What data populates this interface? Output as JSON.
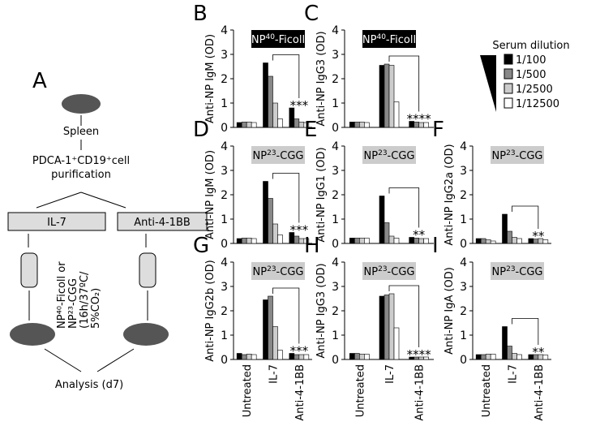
{
  "diagram": {
    "letter": "A",
    "spleen": "Spleen",
    "sort1": "PDCA-1⁺CD19⁺cell",
    "sort2": "purification",
    "left_dish": "IL-7",
    "right_dish": "Anti-4-1BB",
    "stim": [
      "NP⁴⁰-Ficoll or",
      "NP²³-CGG",
      "(16h/37ºC/",
      "5%CO₂)"
    ],
    "analysis": "Analysis (d7)"
  },
  "categories": [
    "Untreated",
    "IL-7",
    "Anti-4-1BB"
  ],
  "legend": {
    "title": "Serum dilution",
    "names": [
      "1/100",
      "1/500",
      "1/2500",
      "1/12500"
    ],
    "colors": [
      "#000000",
      "#888888",
      "#cccccc",
      "#ffffff"
    ]
  },
  "chart_data": [
    {
      "type": "bar",
      "panel": "B",
      "title": [
        "NP",
        "40",
        "-Ficoll"
      ],
      "title_box": "#000000",
      "title_text": "#ffffff",
      "ylabel": "Anti-NP IgM (OD)",
      "ylim": [
        0,
        4
      ],
      "yticks": [
        0,
        1,
        2,
        3,
        4
      ],
      "significance": "***",
      "series": [
        {
          "values": [
            0.2,
            2.65,
            0.8
          ]
        },
        {
          "values": [
            0.22,
            2.1,
            0.35
          ]
        },
        {
          "values": [
            0.22,
            1.0,
            0.22
          ]
        },
        {
          "values": [
            0.2,
            0.35,
            0.2
          ]
        }
      ]
    },
    {
      "type": "bar",
      "panel": "C",
      "title": [
        "NP",
        "40",
        "-Ficoll"
      ],
      "title_box": "#000000",
      "title_text": "#ffffff",
      "ylabel": "Anti-NP IgG3 (OD)",
      "ylim": [
        0,
        4
      ],
      "yticks": [
        0,
        1,
        2,
        3,
        4
      ],
      "significance": "****",
      "series": [
        {
          "values": [
            0.22,
            2.55,
            0.25
          ]
        },
        {
          "values": [
            0.22,
            2.6,
            0.22
          ]
        },
        {
          "values": [
            0.22,
            2.55,
            0.2
          ]
        },
        {
          "values": [
            0.2,
            1.05,
            0.2
          ]
        }
      ]
    },
    {
      "type": "bar",
      "panel": "D",
      "title": [
        "NP",
        "23",
        "-CGG"
      ],
      "title_box": "#cccccc",
      "title_text": "#000000",
      "ylabel": "Anti-NP IgM (OD)",
      "ylim": [
        0,
        4
      ],
      "yticks": [
        0,
        1,
        2,
        3,
        4
      ],
      "significance": "***",
      "series": [
        {
          "values": [
            0.2,
            2.55,
            0.45
          ]
        },
        {
          "values": [
            0.22,
            1.85,
            0.3
          ]
        },
        {
          "values": [
            0.22,
            0.8,
            0.2
          ]
        },
        {
          "values": [
            0.2,
            0.35,
            0.2
          ]
        }
      ]
    },
    {
      "type": "bar",
      "panel": "E",
      "title": [
        "NP",
        "23",
        "-CGG"
      ],
      "title_box": "#cccccc",
      "title_text": "#000000",
      "ylabel": "Anti-NP IgG1 (OD)",
      "ylim": [
        0,
        4
      ],
      "yticks": [
        0,
        1,
        2,
        3,
        4
      ],
      "significance": "**",
      "series": [
        {
          "values": [
            0.22,
            1.95,
            0.25
          ]
        },
        {
          "values": [
            0.22,
            0.85,
            0.22
          ]
        },
        {
          "values": [
            0.22,
            0.3,
            0.2
          ]
        },
        {
          "values": [
            0.22,
            0.22,
            0.2
          ]
        }
      ]
    },
    {
      "type": "bar",
      "panel": "F",
      "title": [
        "NP",
        "23",
        "-CGG"
      ],
      "title_box": "#cccccc",
      "title_text": "#000000",
      "ylabel": "Anti-NP IgG2a (OD)",
      "ylim": [
        0,
        4
      ],
      "yticks": [
        0,
        1,
        2,
        3,
        4
      ],
      "significance": "**",
      "series": [
        {
          "values": [
            0.2,
            1.2,
            0.2
          ]
        },
        {
          "values": [
            0.2,
            0.5,
            0.18
          ]
        },
        {
          "values": [
            0.15,
            0.25,
            0.2
          ]
        },
        {
          "values": [
            0.1,
            0.2,
            0.15
          ]
        }
      ]
    },
    {
      "type": "bar",
      "panel": "G",
      "title": [
        "NP",
        "23",
        "-CGG"
      ],
      "title_box": "#cccccc",
      "title_text": "#000000",
      "ylabel": "Anti-NP IgG2b (OD)",
      "ylim": [
        0,
        4
      ],
      "yticks": [
        0,
        1,
        2,
        3,
        4
      ],
      "significance": "***",
      "series": [
        {
          "values": [
            0.25,
            2.45,
            0.25
          ]
        },
        {
          "values": [
            0.2,
            2.6,
            0.2
          ]
        },
        {
          "values": [
            0.22,
            1.35,
            0.2
          ]
        },
        {
          "values": [
            0.2,
            0.38,
            0.2
          ]
        }
      ]
    },
    {
      "type": "bar",
      "panel": "H",
      "title": [
        "NP",
        "23",
        "-CGG"
      ],
      "title_box": "#cccccc",
      "title_text": "#000000",
      "ylabel": "Anti-NP IgG3 (OD)",
      "ylim": [
        0,
        4
      ],
      "yticks": [
        0,
        1,
        2,
        3,
        4
      ],
      "significance": "****",
      "series": [
        {
          "values": [
            0.25,
            2.6,
            0.1
          ]
        },
        {
          "values": [
            0.25,
            2.65,
            0.1
          ]
        },
        {
          "values": [
            0.22,
            2.7,
            0.1
          ]
        },
        {
          "values": [
            0.22,
            1.3,
            0.1
          ]
        }
      ]
    },
    {
      "type": "bar",
      "panel": "I",
      "title": [
        "NP",
        "23",
        "-CGG"
      ],
      "title_box": "#cccccc",
      "title_text": "#000000",
      "ylabel": "Anti-NP IgA (OD)",
      "ylim": [
        0,
        4
      ],
      "yticks": [
        0,
        1,
        2,
        3,
        4
      ],
      "significance": "**",
      "series": [
        {
          "values": [
            0.2,
            1.35,
            0.2
          ]
        },
        {
          "values": [
            0.2,
            0.55,
            0.2
          ]
        },
        {
          "values": [
            0.22,
            0.25,
            0.2
          ]
        },
        {
          "values": [
            0.22,
            0.2,
            0.18
          ]
        }
      ]
    }
  ]
}
